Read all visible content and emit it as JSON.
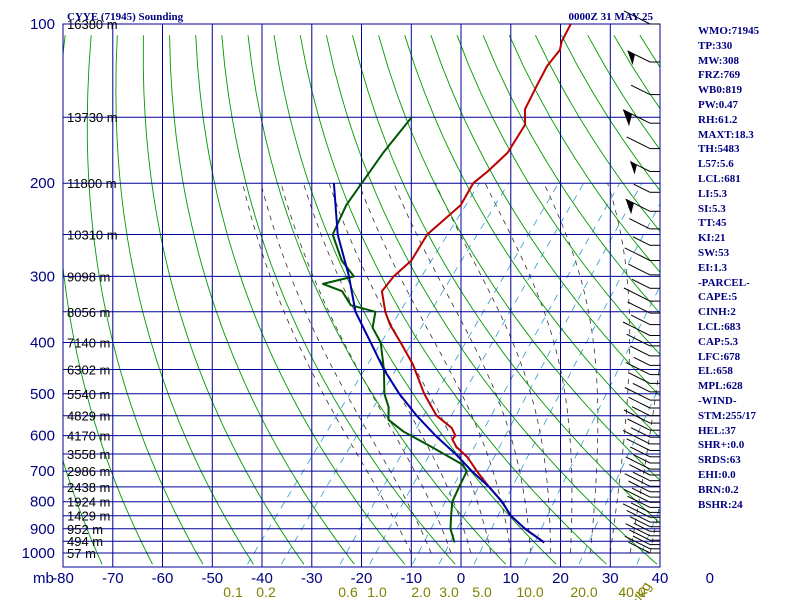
{
  "header": {
    "title": "CYYE (71945) Sounding",
    "time": "0000Z 31 MAY 25"
  },
  "panel_items": [
    "WMO:71945",
    "TP:330",
    "MW:308",
    "FRZ:769",
    "WB0:819",
    "PW:0.47",
    "RH:61.2",
    "MAXT:18.3",
    "TH:5483",
    "L57:5.6",
    "LCL:681",
    "LI:5.3",
    "SI:5.3",
    "TT:45",
    "KI:21",
    "SW:53",
    "EI:1.3",
    "-PARCEL-",
    "CAPE:5",
    "CINH:2",
    "LCL:683",
    "CAP:5.3",
    "LFC:678",
    "EL:658",
    "MPL:628",
    "-WIND-",
    "STM:255/17",
    "HEL:37",
    "SHR+:0.0",
    "SRDS:63",
    "EHI:0.0",
    "BRN:0.2",
    "BSHR:24"
  ],
  "colors": {
    "grid": "#000099",
    "dry_adiabat": "#009900",
    "moist_adiabat": "#333333",
    "mixing_ratio": "#3399cc",
    "temperature": "#bb0000",
    "dewpoint": "#005500",
    "parcel": "#0000aa"
  },
  "chart_data": {
    "type": "line",
    "title": "CYYE (71945) Sounding",
    "subtitle": "0000Z 31 MAY 25",
    "x_unit": "",
    "y_unit": "mb",
    "x_range": [
      -80,
      0
    ],
    "y_range": [
      1000,
      100
    ],
    "pressure_ticks": [
      100,
      200,
      300,
      400,
      500,
      600,
      700,
      800,
      900,
      1000
    ],
    "temperature_ticks": [
      -80,
      -70,
      -60,
      -50,
      -40,
      -30,
      -20,
      -10,
      0,
      10,
      20,
      30,
      40,
      0
    ],
    "mixing_ratio_unit": "g/kg",
    "mixing_ratio_labels": [
      "0.1",
      "0.2",
      "0.6",
      "1.0",
      "2.0",
      "3.0",
      "5.0",
      "10.0",
      "20.0",
      "40.0"
    ],
    "mixing_ratio_values": [
      0.1,
      0.2,
      0.6,
      1.0,
      2.0,
      3.0,
      5.0,
      10.0,
      20.0,
      40.0
    ],
    "heights": [
      {
        "p": 100,
        "label": "16380 m"
      },
      {
        "p": 150,
        "label": "13730 m"
      },
      {
        "p": 200,
        "label": "11800 m"
      },
      {
        "p": 250,
        "label": "10310 m"
      },
      {
        "p": 300,
        "label": "9098 m"
      },
      {
        "p": 350,
        "label": "8056 m"
      },
      {
        "p": 400,
        "label": "7140 m"
      },
      {
        "p": 450,
        "label": "6302 m"
      },
      {
        "p": 500,
        "label": "5540 m"
      },
      {
        "p": 550,
        "label": "4829 m"
      },
      {
        "p": 600,
        "label": "4170 m"
      },
      {
        "p": 650,
        "label": "3558 m"
      },
      {
        "p": 700,
        "label": "2986 m"
      },
      {
        "p": 750,
        "label": "2438 m"
      },
      {
        "p": 800,
        "label": "1924 m"
      },
      {
        "p": 850,
        "label": "1429 m"
      },
      {
        "p": 900,
        "label": "952 m"
      },
      {
        "p": 950,
        "label": "494 m"
      },
      {
        "p": 1000,
        "label": "57 m"
      }
    ],
    "series": [
      {
        "key": "temperature",
        "points": [
          [
            100,
            -63
          ],
          [
            108,
            -62
          ],
          [
            112,
            -61
          ],
          [
            120,
            -61
          ],
          [
            130,
            -60
          ],
          [
            145,
            -58.5
          ],
          [
            155,
            -56
          ],
          [
            175,
            -55
          ],
          [
            190,
            -56
          ],
          [
            200,
            -57
          ],
          [
            220,
            -56
          ],
          [
            250,
            -58
          ],
          [
            280,
            -57
          ],
          [
            300,
            -58
          ],
          [
            320,
            -58
          ],
          [
            350,
            -54
          ],
          [
            370,
            -51
          ],
          [
            400,
            -46
          ],
          [
            440,
            -40
          ],
          [
            500,
            -33
          ],
          [
            550,
            -27
          ],
          [
            580,
            -22
          ],
          [
            600,
            -20
          ],
          [
            610,
            -20
          ],
          [
            630,
            -18
          ],
          [
            660,
            -14
          ],
          [
            700,
            -10
          ],
          [
            750,
            -5
          ],
          [
            800,
            0
          ],
          [
            850,
            4
          ],
          [
            900,
            9
          ],
          [
            955,
            15
          ]
        ]
      },
      {
        "key": "dewpoint",
        "points": [
          [
            150,
            -80
          ],
          [
            175,
            -80
          ],
          [
            220,
            -79
          ],
          [
            250,
            -77
          ],
          [
            280,
            -71
          ],
          [
            300,
            -66
          ],
          [
            310,
            -71
          ],
          [
            320,
            -66
          ],
          [
            340,
            -62
          ],
          [
            350,
            -56
          ],
          [
            375,
            -54
          ],
          [
            400,
            -50
          ],
          [
            450,
            -45
          ],
          [
            500,
            -41
          ],
          [
            530,
            -38
          ],
          [
            560,
            -36
          ],
          [
            590,
            -31
          ],
          [
            630,
            -23
          ],
          [
            680,
            -14
          ],
          [
            700,
            -12
          ],
          [
            750,
            -11
          ],
          [
            800,
            -10
          ],
          [
            850,
            -8
          ],
          [
            900,
            -6
          ],
          [
            955,
            -3
          ]
        ]
      },
      {
        "key": "parcel",
        "points": [
          [
            200,
            -85
          ],
          [
            250,
            -76
          ],
          [
            300,
            -67
          ],
          [
            350,
            -60
          ],
          [
            400,
            -52
          ],
          [
            450,
            -45
          ],
          [
            500,
            -38
          ],
          [
            550,
            -31
          ],
          [
            600,
            -24
          ],
          [
            650,
            -17
          ],
          [
            700,
            -11
          ],
          [
            750,
            -5
          ],
          [
            800,
            0
          ],
          [
            850,
            4
          ],
          [
            900,
            9
          ],
          [
            955,
            15
          ]
        ]
      }
    ]
  }
}
